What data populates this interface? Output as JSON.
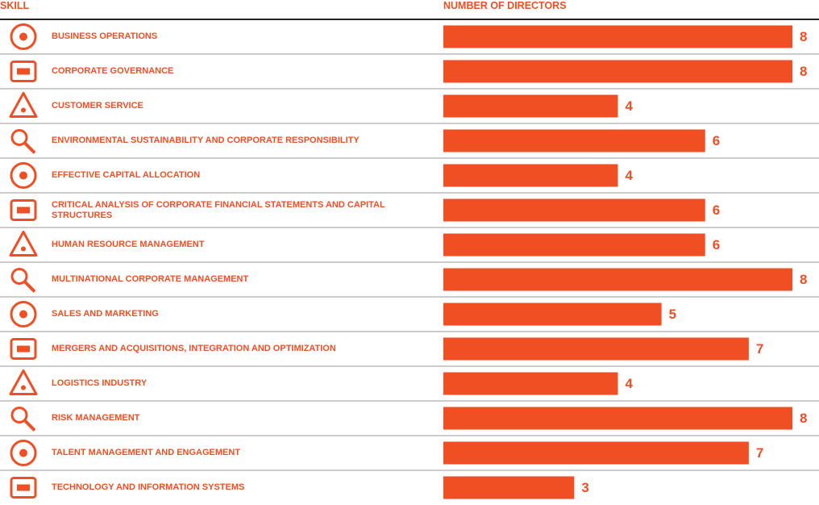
{
  "chart_data": {
    "type": "bar",
    "orientation": "horizontal",
    "category_axis_label": "SKILL",
    "value_axis_label": "NUMBER OF DIRECTORS",
    "categories": [
      "BUSINESS OPERATIONS",
      "CORPORATE GOVERNANCE",
      "CUSTOMER SERVICE",
      "ENVIRONMENTAL SUSTAINABILITY AND CORPORATE RESPONSIBILITY",
      "EFFECTIVE CAPITAL ALLOCATION",
      "CRITICAL ANALYSIS OF CORPORATE FINANCIAL STATEMENTS AND CAPITAL STRUCTURES",
      "HUMAN RESOURCE MANAGEMENT",
      "MULTINATIONAL CORPORATE MANAGEMENT",
      "SALES AND MARKETING",
      "MERGERS AND ACQUISITIONS, INTEGRATION AND OPTIMIZATION",
      "LOGISTICS INDUSTRY",
      "RISK MANAGEMENT",
      "TALENT MANAGEMENT AND ENGAGEMENT",
      "TECHNOLOGY AND INFORMATION SYSTEMS"
    ],
    "values": [
      8,
      8,
      4,
      6,
      4,
      6,
      6,
      8,
      5,
      7,
      4,
      8,
      7,
      3
    ],
    "color": "#f04e23",
    "xlim": [
      0,
      8
    ]
  }
}
